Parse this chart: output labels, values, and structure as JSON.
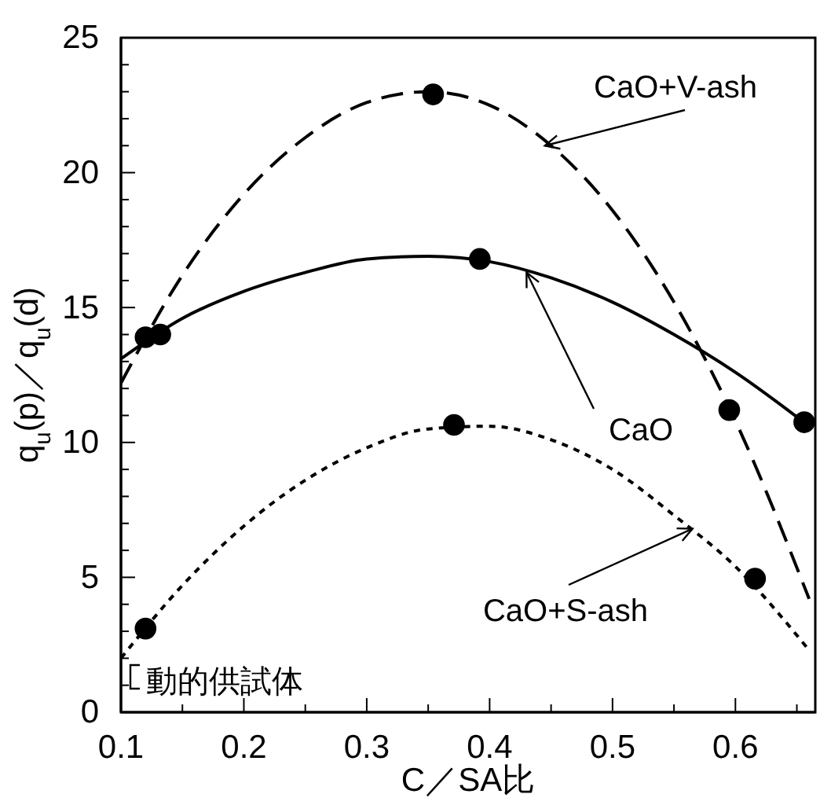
{
  "chart_data": {
    "type": "line",
    "xlabel": "C／SA比",
    "ylabel": "q$_{u}$(p)／q$_{u}$(d)",
    "xlim": [
      0.1,
      0.665
    ],
    "xticks": [
      0.1,
      {
        "value": 0.15,
        "label": null
      },
      0.2,
      {
        "value": 0.25,
        "label": null
      },
      0.3,
      {
        "value": 0.35,
        "label": null
      },
      0.4,
      {
        "value": 0.45,
        "label": null
      },
      0.5,
      {
        "value": 0.55,
        "label": null
      },
      0.6,
      {
        "value": 0.65,
        "label": null
      }
    ],
    "ylim": [
      0,
      25
    ],
    "yticks": [
      0,
      {
        "value": 1,
        "label": null
      },
      {
        "value": 2,
        "label": null
      },
      {
        "value": 3,
        "label": null
      },
      {
        "value": 4,
        "label": null
      },
      5,
      {
        "value": 6,
        "label": null
      },
      {
        "value": 7,
        "label": null
      },
      {
        "value": 8,
        "label": null
      },
      {
        "value": 9,
        "label": null
      },
      10,
      {
        "value": 11,
        "label": null
      },
      {
        "value": 12,
        "label": null
      },
      {
        "value": 13,
        "label": null
      },
      {
        "value": 14,
        "label": null
      },
      15,
      {
        "value": 16,
        "label": null
      },
      {
        "value": 17,
        "label": null
      },
      {
        "value": 18,
        "label": null
      },
      {
        "value": 19,
        "label": null
      },
      20,
      {
        "value": 21,
        "label": null
      },
      {
        "value": 22,
        "label": null
      },
      {
        "value": 23,
        "label": null
      },
      {
        "value": 24,
        "label": null
      },
      25
    ],
    "grid": false,
    "annotations": [
      {
        "text": "CaO+V-ash",
        "x": 0.445,
        "y": 21.0
      },
      {
        "text": "CaO",
        "x": 0.43,
        "y": 16.3
      },
      {
        "text": "CaO+S-ash",
        "x": 0.565,
        "y": 6.8
      },
      "動的供試体"
    ],
    "series": [
      {
        "line_style": "dashed",
        "color": "#000000",
        "x": [
          0.1,
          0.15,
          0.2,
          0.25,
          0.3,
          0.35,
          0.4,
          0.45,
          0.5,
          0.55,
          0.6,
          0.66
        ],
        "values": [
          12.2,
          16.2,
          19.2,
          21.3,
          22.6,
          23.0,
          22.5,
          21.0,
          18.6,
          15.2,
          10.8,
          4.2
        ]
      },
      {
        "line_style": "solid",
        "color": "#000000",
        "x": [
          0.1,
          0.15,
          0.2,
          0.25,
          0.3,
          0.35,
          0.4,
          0.45,
          0.5,
          0.55,
          0.6,
          0.66
        ],
        "values": [
          13.1,
          14.6,
          15.6,
          16.3,
          16.8,
          16.9,
          16.7,
          16.1,
          15.2,
          14.0,
          12.6,
          10.6
        ]
      },
      {
        "line_style": "dotted",
        "color": "#000000",
        "x": [
          0.1,
          0.15,
          0.2,
          0.25,
          0.3,
          0.35,
          0.4,
          0.45,
          0.5,
          0.55,
          0.6,
          0.66
        ],
        "values": [
          2.0,
          4.7,
          6.9,
          8.6,
          9.8,
          10.5,
          10.6,
          10.1,
          9.0,
          7.3,
          5.4,
          2.3
        ]
      },
      {
        "type": "scatter",
        "marker": "circle",
        "color": "#000000",
        "x": [
          0.12,
          0.354,
          0.595
        ],
        "values": [
          13.9,
          22.9,
          11.2
        ]
      },
      {
        "type": "scatter",
        "marker": "circle",
        "color": "#000000",
        "x": [
          0.132,
          0.392,
          0.656
        ],
        "values": [
          14.0,
          16.8,
          10.75
        ]
      },
      {
        "type": "scatter",
        "marker": "circle",
        "color": "#000000",
        "x": [
          0.12,
          0.371,
          0.616
        ],
        "values": [
          3.1,
          10.65,
          4.95
        ]
      }
    ]
  }
}
